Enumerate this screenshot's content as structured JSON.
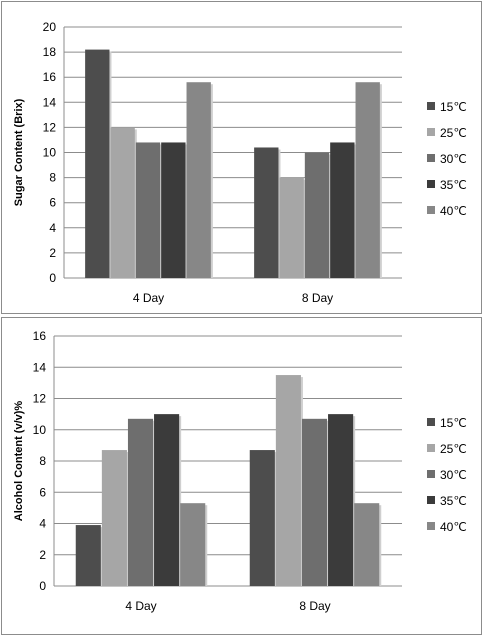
{
  "colors": {
    "15℃": "#4d4d4d",
    "25℃": "#a6a6a6",
    "30℃": "#6e6e6e",
    "35℃": "#3b3b3b",
    "40℃": "#878787"
  },
  "chart_data": [
    {
      "type": "bar",
      "categories": [
        "4 Day",
        "8 Day"
      ],
      "series": [
        {
          "name": "15℃",
          "values": [
            18.2,
            10.4
          ]
        },
        {
          "name": "25℃",
          "values": [
            12.0,
            8.0
          ]
        },
        {
          "name": "30℃",
          "values": [
            10.8,
            10.0
          ]
        },
        {
          "name": "35℃",
          "values": [
            10.8,
            10.8
          ]
        },
        {
          "name": "40℃",
          "values": [
            15.6,
            15.6
          ]
        }
      ],
      "ylabel": "Sugar Content (Brix)",
      "ylim": [
        0,
        20
      ],
      "yticks": [
        0,
        2,
        4,
        6,
        8,
        10,
        12,
        14,
        16,
        18,
        20
      ],
      "grid": true,
      "legend": "right"
    },
    {
      "type": "bar",
      "categories": [
        "4 Day",
        "8 Day"
      ],
      "series": [
        {
          "name": "15℃",
          "values": [
            3.9,
            8.7
          ]
        },
        {
          "name": "25℃",
          "values": [
            8.7,
            13.5
          ]
        },
        {
          "name": "30℃",
          "values": [
            10.7,
            10.7
          ]
        },
        {
          "name": "35℃",
          "values": [
            11.0,
            11.0
          ]
        },
        {
          "name": "40℃",
          "values": [
            5.3,
            5.3
          ]
        }
      ],
      "ylabel": "Alcohol Content (v/v)%",
      "ylim": [
        0,
        16
      ],
      "yticks": [
        0,
        2,
        4,
        6,
        8,
        10,
        12,
        14,
        16
      ],
      "grid": true,
      "legend": "right"
    }
  ]
}
